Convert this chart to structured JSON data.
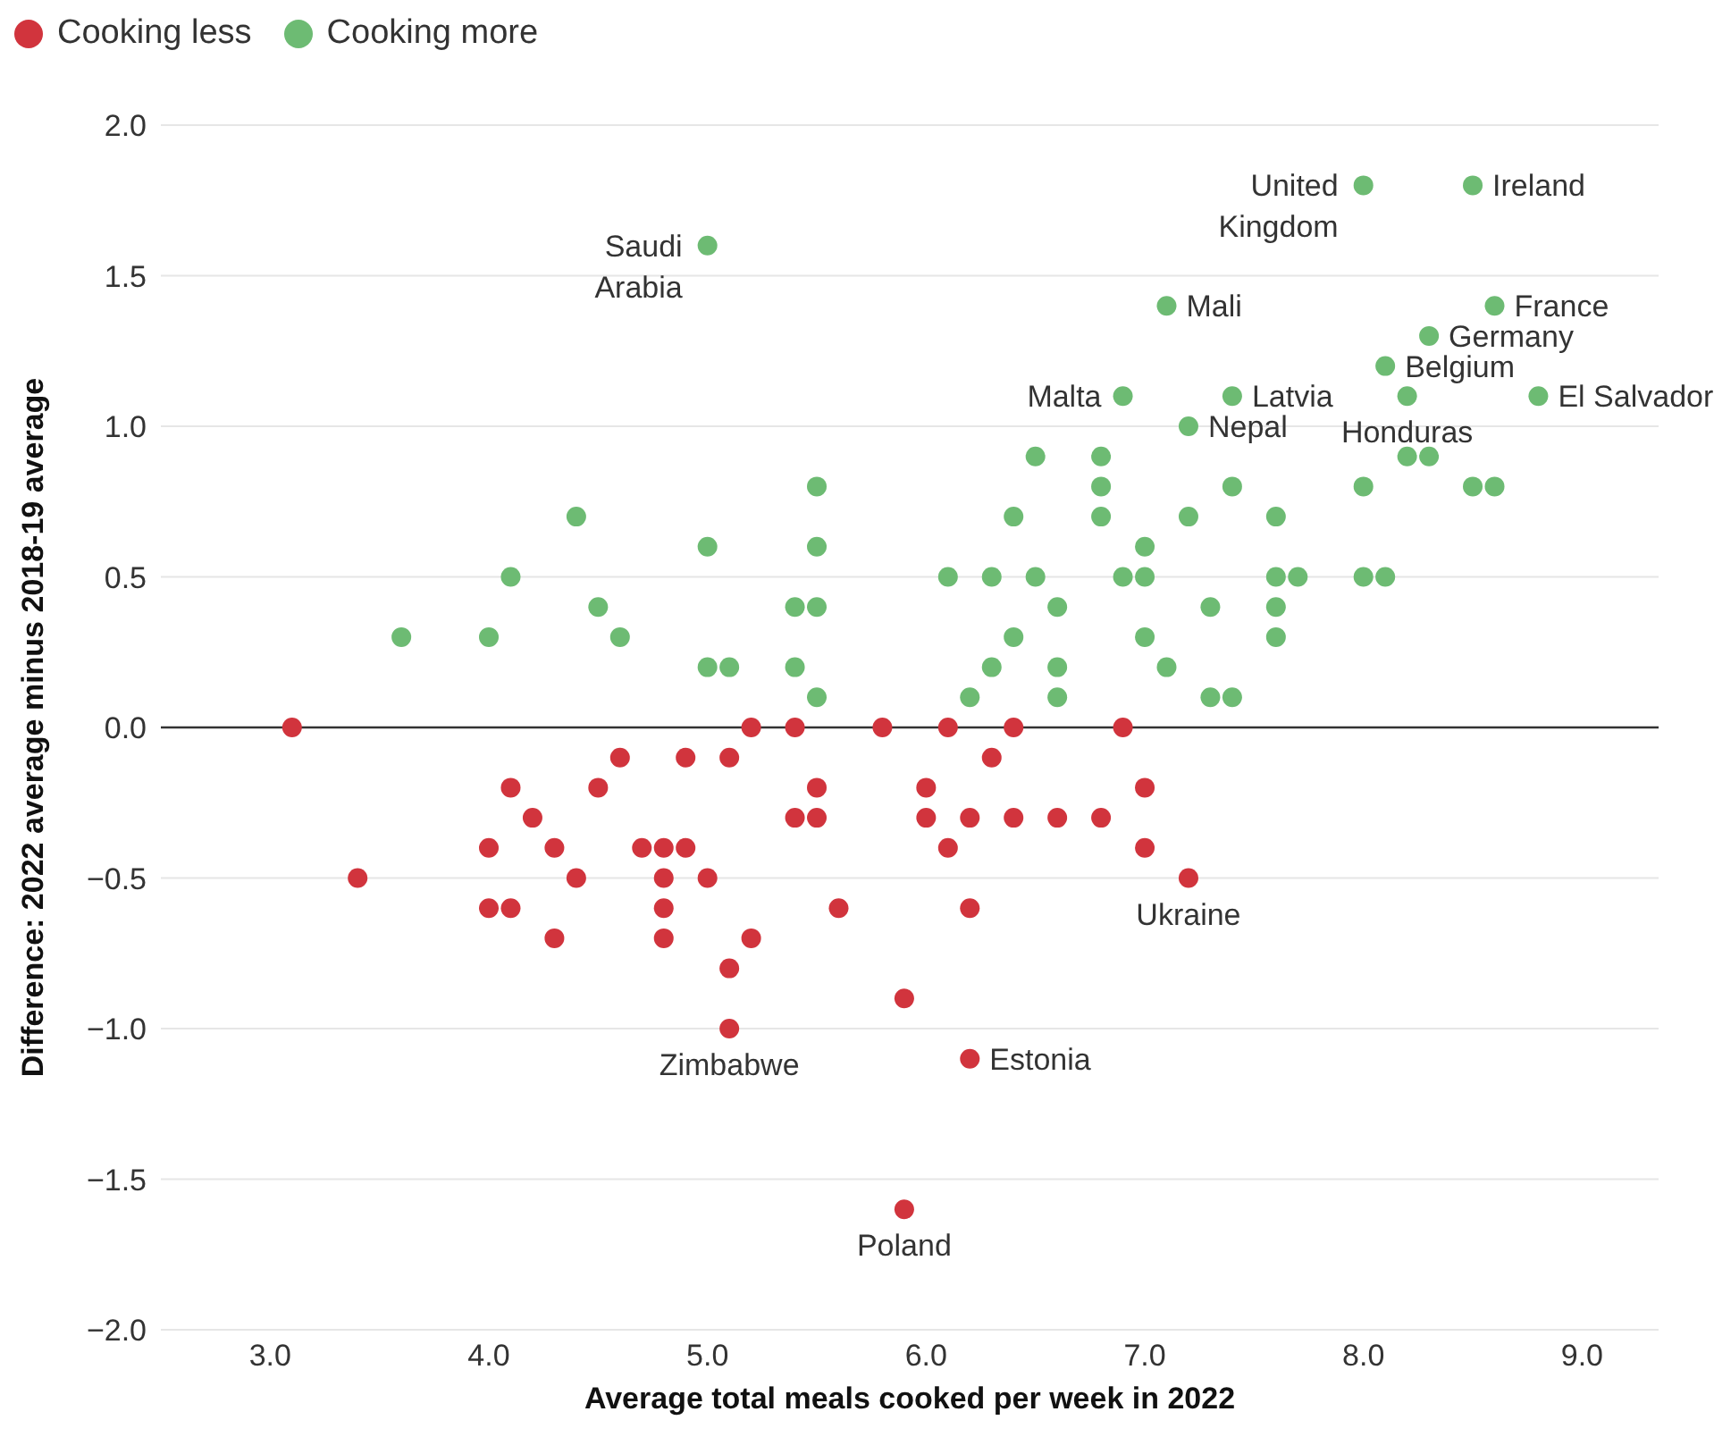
{
  "chart_data": {
    "type": "scatter",
    "xlabel": "Average total meals cooked per week in 2022",
    "ylabel": "Difference: 2022 average minus 2018-19 average",
    "xlim": [
      2.5,
      9.35
    ],
    "ylim": [
      -2,
      2
    ],
    "xticks": [
      {
        "value": 3,
        "label": "3.0"
      },
      {
        "value": 4,
        "label": "4.0"
      },
      {
        "value": 5,
        "label": "5.0"
      },
      {
        "value": 6,
        "label": "6.0"
      },
      {
        "value": 7,
        "label": "7.0"
      },
      {
        "value": 8,
        "label": "8.0"
      },
      {
        "value": 9,
        "label": "9.0"
      }
    ],
    "yticks": [
      {
        "value": -2,
        "label": "−2.0"
      },
      {
        "value": -1.5,
        "label": "−1.5"
      },
      {
        "value": -1,
        "label": "−1.0"
      },
      {
        "value": -0.5,
        "label": "−0.5"
      },
      {
        "value": 0,
        "label": "0.0"
      },
      {
        "value": 0.5,
        "label": "0.5"
      },
      {
        "value": 1,
        "label": "1.0"
      },
      {
        "value": 1.5,
        "label": "1.5"
      },
      {
        "value": 2,
        "label": "2.0"
      }
    ],
    "grid": "y",
    "legend": "top left",
    "marker": "circle",
    "ref_lines": [
      {
        "axis": "y",
        "value": 0,
        "color": "#333333"
      }
    ],
    "series": [
      {
        "name": "Cooking less",
        "color": "#d1343d",
        "x": [
          3.1,
          5.2,
          5.4,
          5.8,
          4.6,
          4.9,
          5.1,
          4.1,
          4.5,
          5.5,
          6.0,
          4.2,
          5.4,
          5.5,
          6.0,
          4.0,
          4.3,
          4.7,
          4.8,
          4.9,
          3.4,
          4.4,
          4.8,
          5.0,
          4.0,
          4.1,
          4.8,
          5.6,
          4.3,
          4.8,
          5.2,
          5.1,
          5.9,
          5.1,
          5.9,
          6.1,
          6.4,
          6.9,
          6.3,
          7.0,
          6.2,
          6.4,
          6.6,
          6.8,
          6.1,
          7.0,
          7.2,
          6.2,
          6.2
        ],
        "values": [
          0,
          0,
          0,
          0,
          -0.1,
          -0.1,
          -0.1,
          -0.2,
          -0.2,
          -0.2,
          -0.2,
          -0.3,
          -0.3,
          -0.3,
          -0.3,
          -0.4,
          -0.4,
          -0.4,
          -0.4,
          -0.4,
          -0.5,
          -0.5,
          -0.5,
          -0.5,
          -0.6,
          -0.6,
          -0.6,
          -0.6,
          -0.7,
          -0.7,
          -0.7,
          -0.8,
          -0.9,
          -1.0,
          -1.6,
          0,
          0,
          0,
          -0.1,
          -0.2,
          -0.3,
          -0.3,
          -0.3,
          -0.3,
          -0.4,
          -0.4,
          -0.5,
          -0.6,
          -1.1
        ]
      },
      {
        "name": "Cooking more",
        "color": "#6dbb73",
        "x": [
          3.6,
          4.0,
          4.1,
          4.4,
          4.5,
          4.6,
          5.0,
          5.0,
          5.0,
          5.1,
          5.4,
          5.4,
          5.5,
          5.5,
          5.5,
          5.5,
          8.0,
          8.5,
          7.1,
          8.6,
          8.3,
          8.1,
          6.9,
          7.4,
          8.2,
          8.8,
          7.2,
          6.5,
          6.8,
          8.2,
          8.3,
          6.8,
          7.4,
          8.0,
          8.5,
          8.6,
          6.4,
          6.8,
          7.2,
          7.6,
          7.0,
          6.1,
          6.3,
          6.5,
          6.9,
          7.0,
          7.6,
          7.7,
          8.0,
          8.1,
          6.6,
          7.3,
          7.6,
          6.4,
          7.0,
          7.6,
          6.3,
          6.6,
          7.1,
          6.2,
          6.6,
          7.3,
          7.4
        ],
        "values": [
          0.3,
          0.3,
          0.5,
          0.7,
          0.4,
          0.3,
          1.6,
          0.6,
          0.2,
          0.2,
          0.4,
          0.2,
          0.8,
          0.6,
          0.4,
          0.1,
          1.8,
          1.8,
          1.4,
          1.4,
          1.3,
          1.2,
          1.1,
          1.1,
          1.1,
          1.1,
          1.0,
          0.9,
          0.9,
          0.9,
          0.9,
          0.8,
          0.8,
          0.8,
          0.8,
          0.8,
          0.7,
          0.7,
          0.7,
          0.7,
          0.6,
          0.5,
          0.5,
          0.5,
          0.5,
          0.5,
          0.5,
          0.5,
          0.5,
          0.5,
          0.4,
          0.4,
          0.4,
          0.3,
          0.3,
          0.3,
          0.2,
          0.2,
          0.2,
          0.1,
          0.1,
          0.1,
          0.1
        ]
      }
    ],
    "annotations": [
      {
        "text": "United Kingdom",
        "x": 8.0,
        "y": 1.8
      },
      {
        "text": "Ireland",
        "x": 8.5,
        "y": 1.8
      },
      {
        "text": "Saudi Arabia",
        "x": 5.0,
        "y": 1.6
      },
      {
        "text": "Mali",
        "x": 7.1,
        "y": 1.4
      },
      {
        "text": "France",
        "x": 8.6,
        "y": 1.4
      },
      {
        "text": "Germany",
        "x": 8.3,
        "y": 1.3
      },
      {
        "text": "Belgium",
        "x": 8.1,
        "y": 1.2
      },
      {
        "text": "Malta",
        "x": 6.9,
        "y": 1.1
      },
      {
        "text": "Latvia",
        "x": 7.4,
        "y": 1.1
      },
      {
        "text": "Honduras",
        "x": 8.2,
        "y": 1.1
      },
      {
        "text": "El Salvador",
        "x": 8.8,
        "y": 1.1
      },
      {
        "text": "Nepal",
        "x": 7.2,
        "y": 1.0
      },
      {
        "text": "Ukraine",
        "x": 7.2,
        "y": -0.5
      },
      {
        "text": "Zimbabwe",
        "x": 5.1,
        "y": -1.0
      },
      {
        "text": "Estonia",
        "x": 6.2,
        "y": -1.1
      },
      {
        "text": "Poland",
        "x": 5.9,
        "y": -1.6
      }
    ]
  }
}
